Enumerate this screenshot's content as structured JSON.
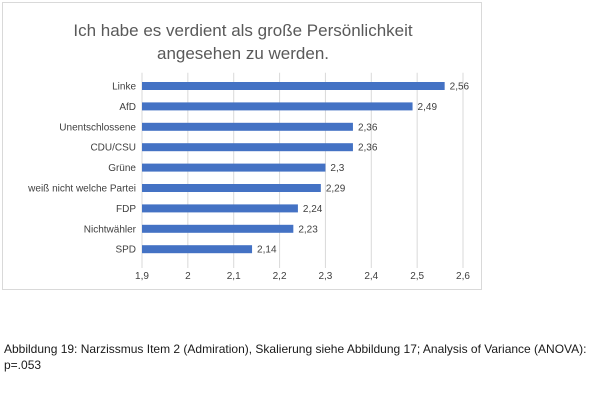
{
  "chart_data": {
    "type": "bar",
    "orientation": "horizontal",
    "title_lines": [
      "Ich habe es verdient als große Persönlichkeit",
      "angesehen zu werden."
    ],
    "categories": [
      "Linke",
      "AfD",
      "Unentschlossene",
      "CDU/CSU",
      "Grüne",
      "weiß nicht welche Partei",
      "FDP",
      "Nichtwähler",
      "SPD"
    ],
    "values": [
      2.56,
      2.49,
      2.36,
      2.36,
      2.3,
      2.29,
      2.24,
      2.23,
      2.14
    ],
    "value_labels": [
      "2,56",
      "2,49",
      "2,36",
      "2,36",
      "2,3",
      "2,29",
      "2,24",
      "2,23",
      "2,14"
    ],
    "xlim": [
      1.9,
      2.6
    ],
    "x_ticks": [
      1.9,
      2.0,
      2.1,
      2.2,
      2.3,
      2.4,
      2.5,
      2.6
    ],
    "x_tick_labels": [
      "1,9",
      "2",
      "2,1",
      "2,2",
      "2,3",
      "2,4",
      "2,5",
      "2,6"
    ],
    "grid": "vertical",
    "bar_color": "#4472c4",
    "grid_color": "#d9d9d9"
  },
  "caption": "Abbildung 19: Narzissmus Item 2 (Admiration), Skalierung siehe Abbildung 17; Analysis of Variance (ANOVA): p=.053"
}
